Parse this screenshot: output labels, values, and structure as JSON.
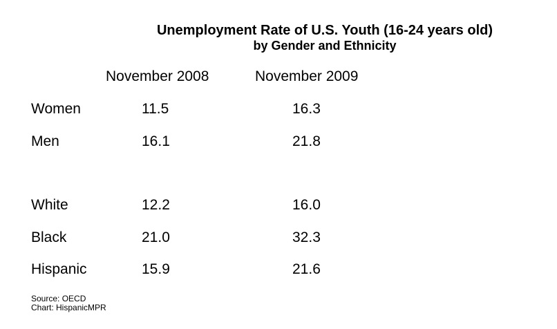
{
  "chart_data": {
    "type": "table",
    "title": "Unemployment Rate of U.S. Youth (16-24 years old)",
    "subtitle": "by Gender and Ethnicity",
    "columns": [
      "November 2008",
      "November 2009"
    ],
    "rows": [
      {
        "label": "Women",
        "values": [
          "11.5",
          "16.3"
        ]
      },
      {
        "label": "Men",
        "values": [
          "16.1",
          "21.8"
        ]
      },
      {
        "label": "White",
        "values": [
          "12.2",
          "16.0"
        ]
      },
      {
        "label": "Black",
        "values": [
          "21.0",
          "32.3"
        ]
      },
      {
        "label": "Hispanic",
        "values": [
          "15.9",
          "21.6"
        ]
      }
    ]
  },
  "footer": {
    "source": "Source: OECD",
    "credit": "Chart: HispanicMPR"
  }
}
